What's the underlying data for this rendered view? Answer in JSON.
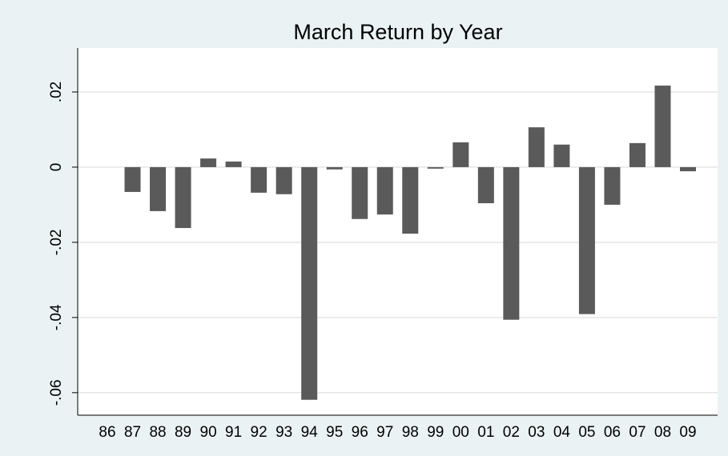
{
  "chart_data": {
    "type": "bar",
    "title": "March Return by Year",
    "categories": [
      "86",
      "87",
      "88",
      "89",
      "90",
      "91",
      "92",
      "93",
      "94",
      "95",
      "96",
      "97",
      "98",
      "99",
      "00",
      "01",
      "02",
      "03",
      "04",
      "05",
      "06",
      "07",
      "08",
      "09"
    ],
    "values": [
      null,
      -0.0066,
      -0.0117,
      -0.0162,
      0.0023,
      0.0015,
      -0.0068,
      -0.0072,
      -0.0619,
      -0.0006,
      -0.0138,
      -0.0126,
      -0.0177,
      -0.0004,
      0.0066,
      -0.0096,
      -0.0406,
      0.0106,
      0.006,
      -0.0391,
      -0.01,
      0.0064,
      0.0217,
      -0.0011
    ],
    "color": "#5a5a5a",
    "ylim": [
      -0.066,
      0.0317
    ],
    "yticks": [
      {
        "value": -0.06,
        "label": "-.06"
      },
      {
        "value": -0.04,
        "label": "-.04"
      },
      {
        "value": -0.02,
        "label": "-.02"
      },
      0,
      {
        "value": 0.02,
        "label": ".02"
      }
    ],
    "grid": true
  }
}
